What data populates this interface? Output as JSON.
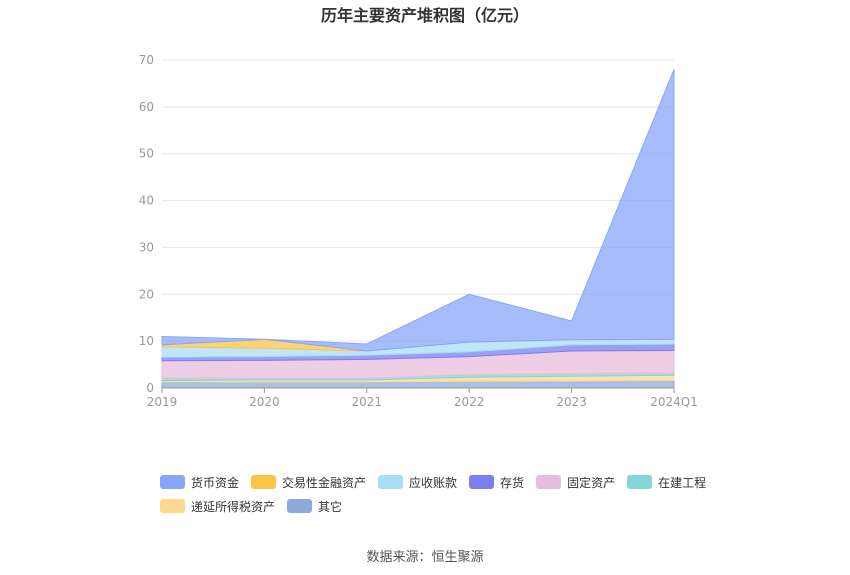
{
  "title": "历年主要资产堆积图（亿元）",
  "source": "数据来源：恒生聚源",
  "chart_data": {
    "type": "area",
    "stacked": true,
    "title": "历年主要资产堆积图（亿元）",
    "xlabel": "",
    "ylabel": "",
    "categories": [
      "2019",
      "2020",
      "2021",
      "2022",
      "2023",
      "2024Q1"
    ],
    "y_ticks": [
      "0",
      "10",
      "20",
      "30",
      "40",
      "50",
      "60",
      "70"
    ],
    "ylim": [
      0,
      70
    ],
    "grid": true,
    "legend_position": "bottom",
    "series": [
      {
        "name": "其它",
        "color": "#8eaadb",
        "values": [
          1.3,
          1.3,
          1.3,
          1.4,
          1.5,
          1.6
        ]
      },
      {
        "name": "递延所得税资产",
        "color": "#fcd98f",
        "values": [
          0.3,
          0.4,
          0.4,
          0.9,
          1.0,
          1.1
        ]
      },
      {
        "name": "在建工程",
        "color": "#84d6d6",
        "values": [
          0.5,
          0.4,
          0.4,
          0.5,
          0.6,
          0.5
        ]
      },
      {
        "name": "固定资产",
        "color": "#e8bcdc",
        "values": [
          3.7,
          3.8,
          4.0,
          3.9,
          4.8,
          4.8
        ]
      },
      {
        "name": "存货",
        "color": "#7b7ff0",
        "values": [
          0.8,
          0.8,
          0.9,
          1.0,
          1.3,
          1.4
        ]
      },
      {
        "name": "应收账款",
        "color": "#a8def6",
        "values": [
          2.2,
          1.8,
          0.9,
          2.1,
          1.1,
          1.0
        ]
      },
      {
        "name": "交易性金融资产",
        "color": "#fcc547",
        "values": [
          0.4,
          1.9,
          0.0,
          0.0,
          0.0,
          0.0
        ]
      },
      {
        "name": "货币资金",
        "color": "#8aa6f8",
        "values": [
          1.8,
          0.0,
          1.5,
          10.2,
          4.0,
          57.6
        ]
      }
    ]
  },
  "legend": {
    "rows": [
      [
        {
          "name": "货币资金",
          "color": "#8aa6f8"
        },
        {
          "name": "交易性金融资产",
          "color": "#fcc547"
        },
        {
          "name": "应收账款",
          "color": "#a8def6"
        },
        {
          "name": "存货",
          "color": "#7b7ff0"
        },
        {
          "name": "固定资产",
          "color": "#e8bcdc"
        },
        {
          "name": "在建工程",
          "color": "#84d6d6"
        }
      ],
      [
        {
          "name": "递延所得税资产",
          "color": "#fcd98f"
        },
        {
          "name": "其它",
          "color": "#8eaadb"
        }
      ]
    ]
  }
}
